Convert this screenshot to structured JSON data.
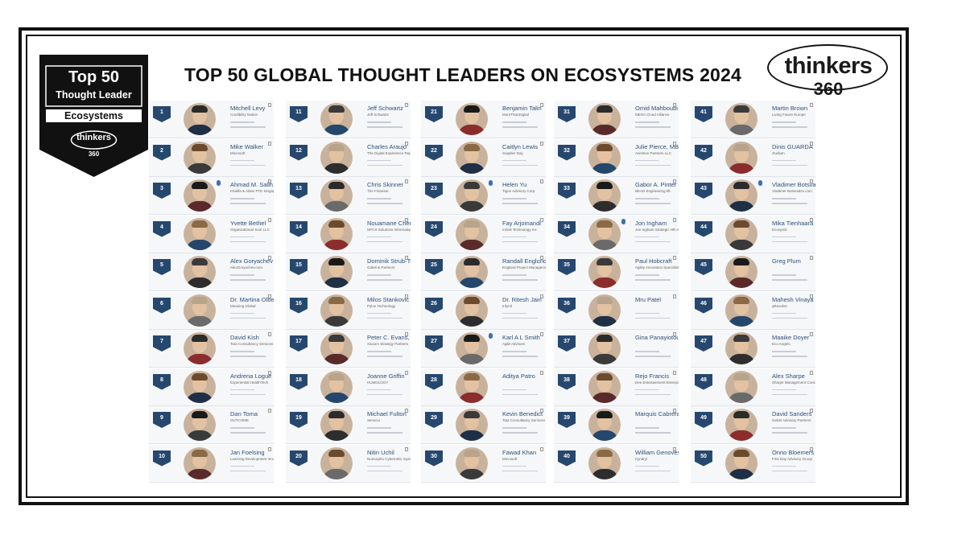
{
  "badge": {
    "line1": "Top 50",
    "line2": "Thought Leader",
    "line3": "Ecosystems",
    "brand": "thinkers",
    "brand_num": "360"
  },
  "title": "TOP 50 GLOBAL THOUGHT LEADERS ON ECOSYSTEMS 2024",
  "logo": {
    "word": "thinkers",
    "num": "360"
  },
  "colors": {
    "rank_badge": "#27486e",
    "name_text": "#2d4f7c",
    "frame": "#111111"
  },
  "leaders": [
    {
      "rank": "1",
      "name": "Mitchell Levy",
      "sub": "Credibility Nation"
    },
    {
      "rank": "2",
      "name": "Mike Walker",
      "sub": "Microsoft"
    },
    {
      "rank": "3",
      "name": "Ahmad M. Salih,",
      "sub": "Khalifa & Alami PTE Singap"
    },
    {
      "rank": "4",
      "name": "Yvette Bethel",
      "sub": "Organizational Soul LLC"
    },
    {
      "rank": "5",
      "name": "Alex Goryachev",
      "sub": "AlexGoryachev.com"
    },
    {
      "rank": "6",
      "name": "Dr. Martina Olbe",
      "sub": "Meaning.Global"
    },
    {
      "rank": "7",
      "name": "David Kish",
      "sub": "Tara Consultancy Services"
    },
    {
      "rank": "8",
      "name": "Andrena Logue",
      "sub": "Experiential HealthTech"
    },
    {
      "rank": "9",
      "name": "Dan Toma",
      "sub": "OUTCOME"
    },
    {
      "rank": "10",
      "name": "Jan Foelsing",
      "sub": "Learning Development Inno"
    },
    {
      "rank": "11",
      "name": "Jeff Schwartz",
      "sub": "Jeff Schwartz"
    },
    {
      "rank": "12",
      "name": "Charles Araujo",
      "sub": "The Digital Experience Report"
    },
    {
      "rank": "13",
      "name": "Chris Skinner",
      "sub": "The Finanser"
    },
    {
      "rank": "14",
      "name": "Nouamane Cherku",
      "sub": "NPCS Solutions Informatiques"
    },
    {
      "rank": "15",
      "name": "Dominik Strub-Tee",
      "sub": "Gabel & Partners"
    },
    {
      "rank": "16",
      "name": "Milos Stankovic",
      "sub": "Pylon Technology"
    },
    {
      "rank": "17",
      "name": "Peter C. Evans, PhD",
      "sub": "Xaxiom Strategy Partners"
    },
    {
      "rank": "18",
      "name": "Joanne Griffin",
      "sub": "HUMOLOGY"
    },
    {
      "rank": "19",
      "name": "Michael Fulton",
      "sub": "Servicio"
    },
    {
      "rank": "20",
      "name": "Nitin Uchil",
      "sub": "Numorpho Cybernetic Systems"
    },
    {
      "rank": "21",
      "name": "Benjamin Talin",
      "sub": "MoreThanDigital"
    },
    {
      "rank": "22",
      "name": "Caitlyn Lewis",
      "sub": "Supplier Day"
    },
    {
      "rank": "23",
      "name": "Helen Yu",
      "sub": "Tigon Advisory Corp"
    },
    {
      "rank": "24",
      "name": "Fay Arjomandi",
      "sub": "mimik Technology Inc"
    },
    {
      "rank": "25",
      "name": "Randall Englund",
      "sub": "Englund Project Management"
    },
    {
      "rank": "26",
      "name": "Dr. Ritesh Jain",
      "sub": "Infynit"
    },
    {
      "rank": "27",
      "name": "Karl A L Smith",
      "sub": "Agile Advisors"
    },
    {
      "rank": "28",
      "name": "Aditya Patro",
      "sub": ""
    },
    {
      "rank": "29",
      "name": "Kevin Benedict",
      "sub": "Tata Consultancy Services"
    },
    {
      "rank": "30",
      "name": "Fawad Khan",
      "sub": "Microsoft"
    },
    {
      "rank": "31",
      "name": "Omid Mahboubi",
      "sub": "MENA Cloud Alliance"
    },
    {
      "rank": "32",
      "name": "Julie Pierce, MBA",
      "sub": "Aventive Partners LLC"
    },
    {
      "rank": "33",
      "name": "Gabor A. Pinter",
      "sub": "BEAD Engineering kft."
    },
    {
      "rank": "34",
      "name": "Jon Ingham",
      "sub": "Jon Ingham Strategic HR Academy"
    },
    {
      "rank": "35",
      "name": "Paul Hobcraft",
      "sub": "Agility Innovation Specialists"
    },
    {
      "rank": "36",
      "name": "Mru Patel",
      "sub": ""
    },
    {
      "rank": "37",
      "name": "Gina Panayiotou",
      "sub": ""
    },
    {
      "rank": "38",
      "name": "Rejo Francis",
      "sub": "Dee Entertainment Enterprises"
    },
    {
      "rank": "39",
      "name": "Marquis Cabrera",
      "sub": ""
    },
    {
      "rank": "40",
      "name": "William Genovese",
      "sub": "Kyndryl"
    },
    {
      "rank": "41",
      "name": "Martin Brown",
      "sub": "Living Future Europe"
    },
    {
      "rank": "42",
      "name": "Dinis GUARDA",
      "sub": "ztudium"
    },
    {
      "rank": "43",
      "name": "Vladimer Botsva",
      "sub": "Vladimer Botsvadze.com"
    },
    {
      "rank": "44",
      "name": "Mika Tienhaara",
      "sub": "Ecosystic"
    },
    {
      "rank": "45",
      "name": "Greg Plum",
      "sub": ""
    },
    {
      "rank": "46",
      "name": "Mahesh Vinaya",
      "sub": "qResolve"
    },
    {
      "rank": "47",
      "name": "Maaike Doyer",
      "sub": "Eco Angels"
    },
    {
      "rank": "48",
      "name": "Alex Sharpe",
      "sub": "Sharpe Management Consulting"
    },
    {
      "rank": "49",
      "name": "David Sanders",
      "sub": "Gebel Advisory Partners"
    },
    {
      "rank": "50",
      "name": "Onno Bloemers",
      "sub": "First Day Advisory Group"
    }
  ]
}
